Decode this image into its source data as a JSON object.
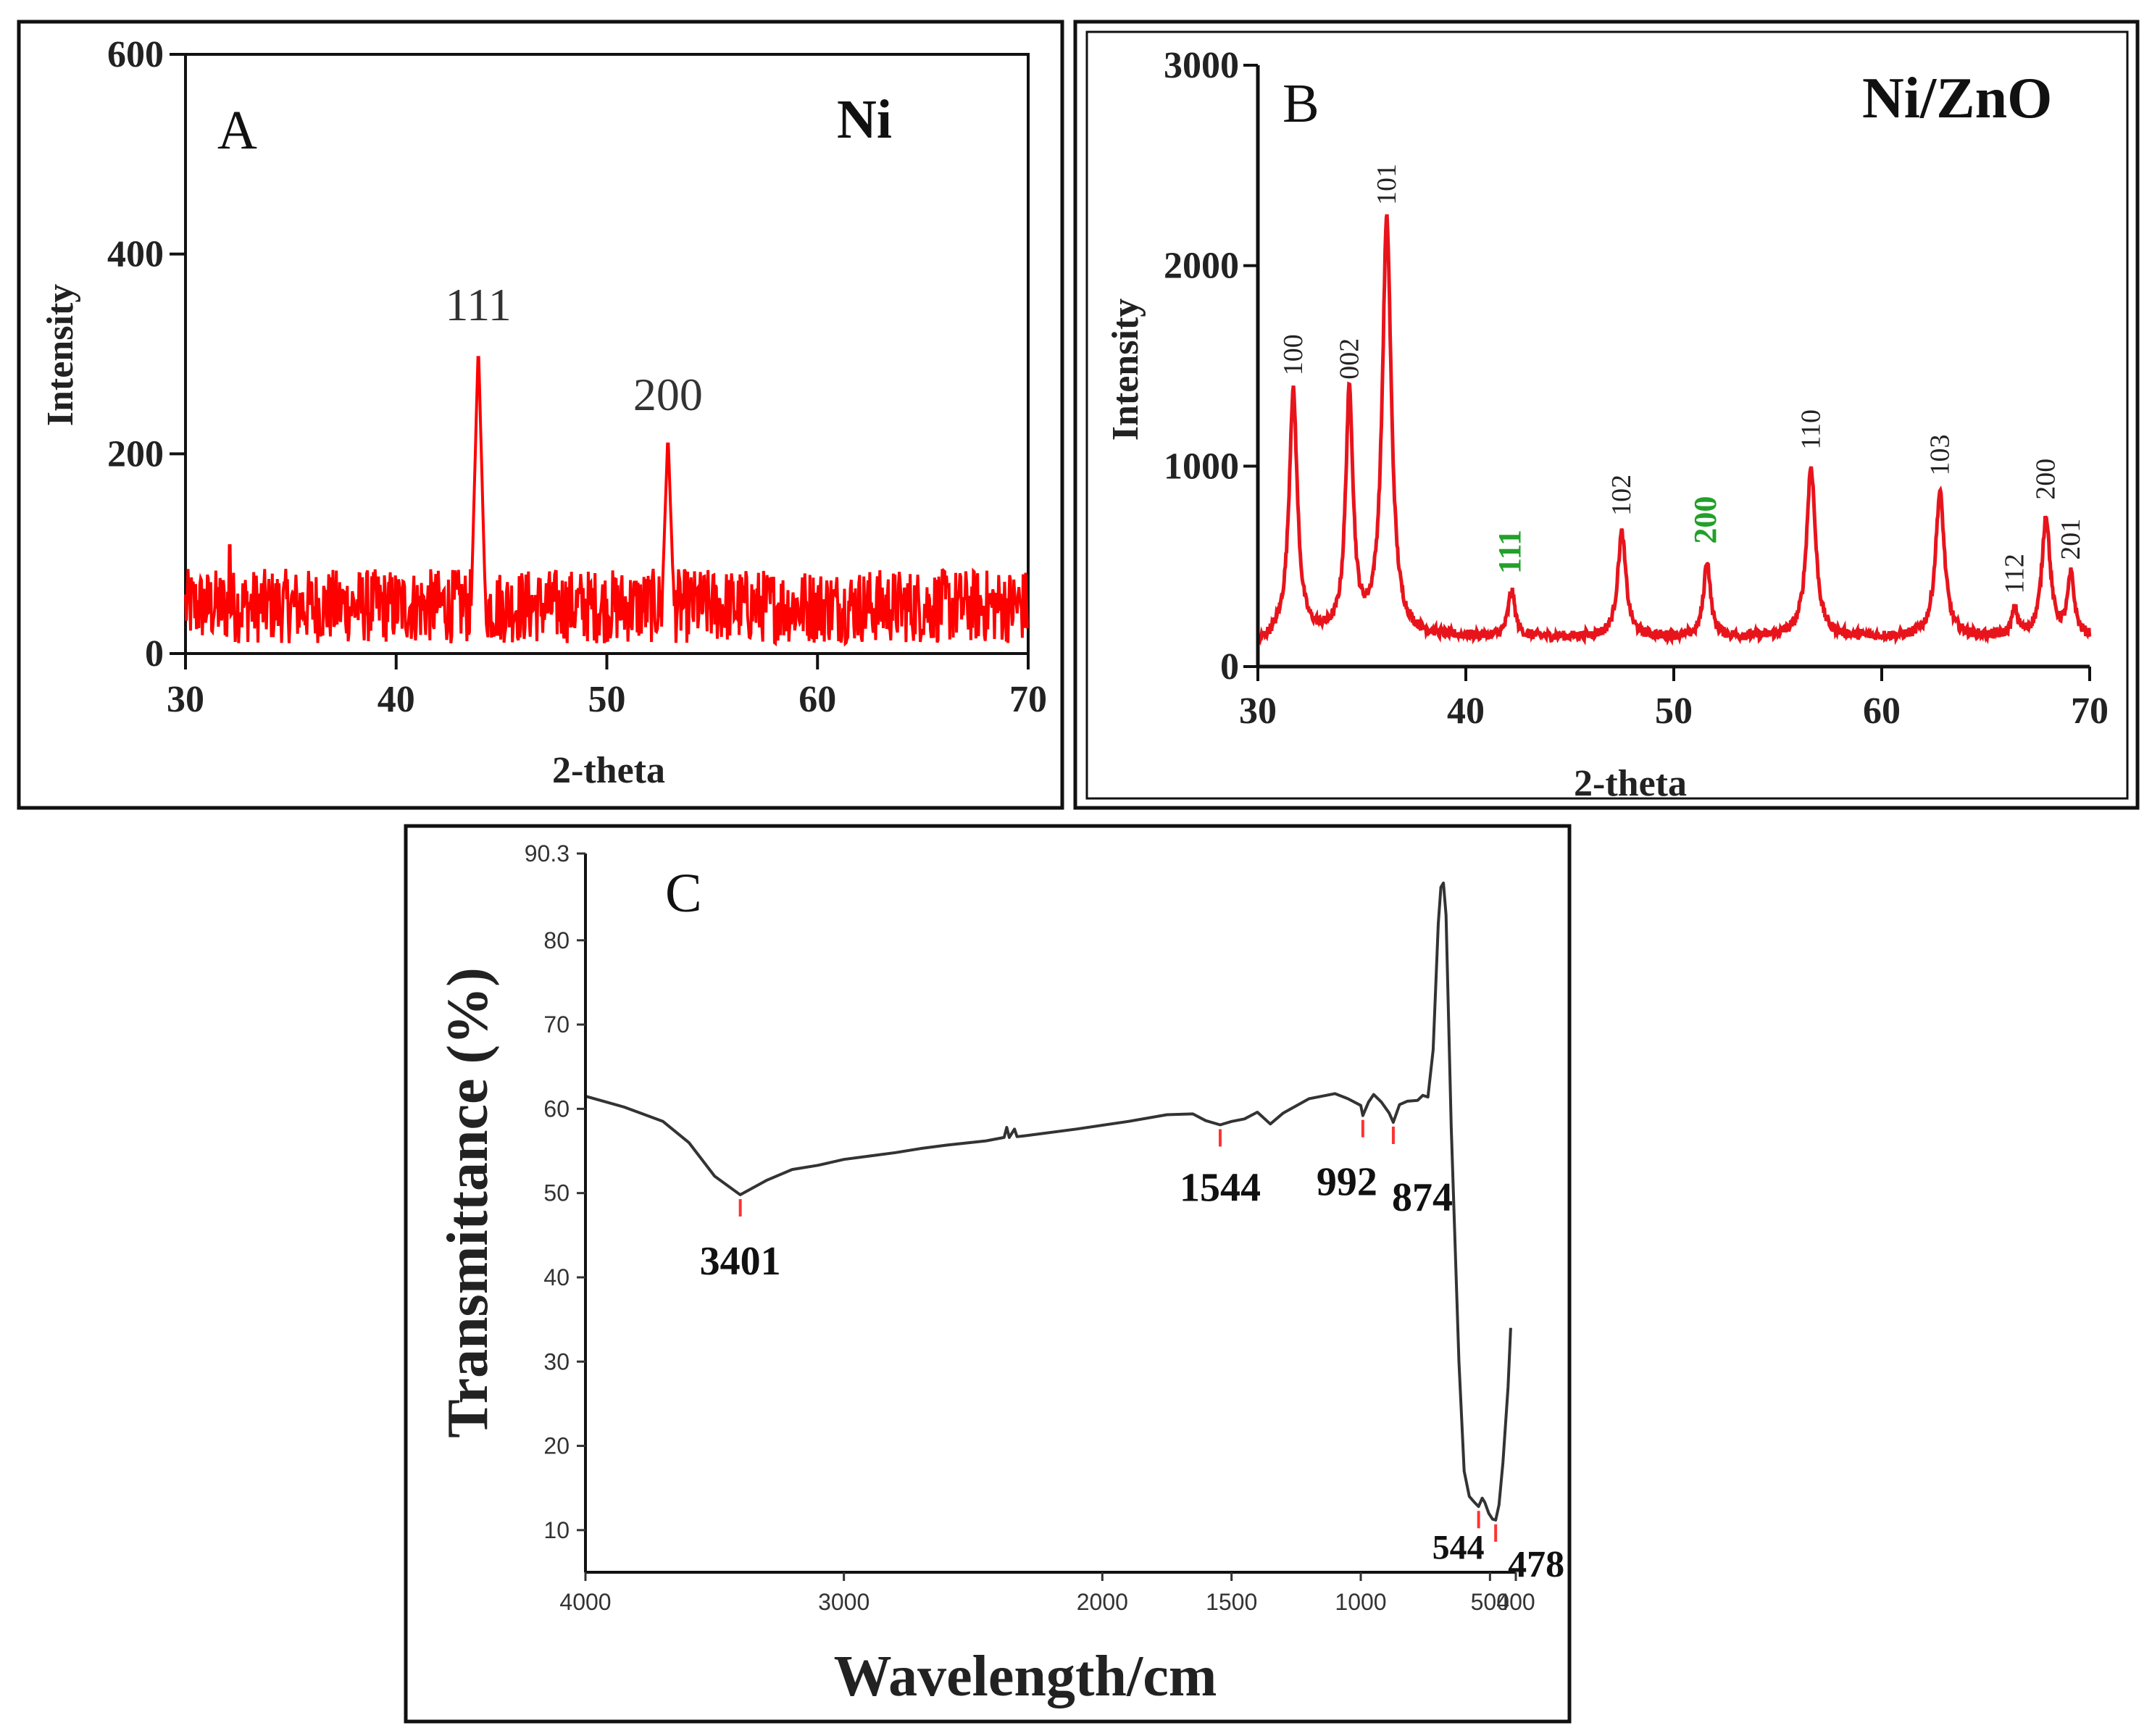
{
  "chart_data": [
    {
      "id": "A",
      "type": "line",
      "panel_label": "A",
      "sample_label": "Ni",
      "xlabel": "2-theta",
      "ylabel": "Intensity",
      "xlim": [
        30,
        70
      ],
      "ylim": [
        0,
        600
      ],
      "x_ticks": [
        30,
        40,
        50,
        60,
        70
      ],
      "y_ticks": [
        0,
        200,
        400,
        600
      ],
      "series_color": "#ff0000",
      "noise_baseline": [
        10,
        85
      ],
      "peaks": [
        {
          "x": 43.9,
          "y": 312,
          "width": 0.35,
          "label": "111",
          "label_color": "#333333"
        },
        {
          "x": 52.9,
          "y": 222,
          "width": 0.3,
          "label": "200",
          "label_color": "#333333"
        }
      ]
    },
    {
      "id": "B",
      "type": "line",
      "panel_label": "B",
      "sample_label": "Ni/ZnO",
      "xlabel": "2-theta",
      "ylabel": "Intensity",
      "xlim": [
        30,
        70
      ],
      "ylim": [
        0,
        3000
      ],
      "x_ticks": [
        30,
        40,
        50,
        60,
        70
      ],
      "y_ticks": [
        0,
        1000,
        2000,
        3000
      ],
      "series_color": "#e8141c",
      "baseline": 160,
      "peaks": [
        {
          "x": 31.7,
          "y": 1380,
          "width": 0.55,
          "label": "100",
          "label_color": "#222222"
        },
        {
          "x": 34.4,
          "y": 1360,
          "width": 0.5,
          "label": "002",
          "label_color": "#222222"
        },
        {
          "x": 36.2,
          "y": 2230,
          "width": 0.6,
          "label": "101",
          "label_color": "#222222"
        },
        {
          "x": 42.2,
          "y": 390,
          "width": 0.45,
          "label": "111",
          "label_color": "#22a02a"
        },
        {
          "x": 47.5,
          "y": 680,
          "width": 0.55,
          "label": "102",
          "label_color": "#222222"
        },
        {
          "x": 51.6,
          "y": 540,
          "width": 0.45,
          "label": "200",
          "label_color": "#22a02a"
        },
        {
          "x": 56.6,
          "y": 1010,
          "width": 0.6,
          "label": "110",
          "label_color": "#222222"
        },
        {
          "x": 62.8,
          "y": 880,
          "width": 0.6,
          "label": "103",
          "label_color": "#222222"
        },
        {
          "x": 66.4,
          "y": 290,
          "width": 0.4,
          "label": "112",
          "label_color": "#222222"
        },
        {
          "x": 67.9,
          "y": 760,
          "width": 0.55,
          "label": "200",
          "label_color": "#222222"
        },
        {
          "x": 69.1,
          "y": 460,
          "width": 0.45,
          "label": "201",
          "label_color": "#222222"
        }
      ]
    },
    {
      "id": "C",
      "type": "line",
      "panel_label": "C",
      "xlabel": "Wavelength/cm",
      "ylabel": "Transmittance  (%)",
      "xlim": [
        4000,
        400
      ],
      "ylim": [
        5,
        90.3
      ],
      "x_ticks": [
        4000,
        3000,
        2000,
        1500,
        1000,
        500,
        400
      ],
      "y_ticks": [
        10,
        20,
        30,
        40,
        50,
        60,
        70,
        80,
        90.3
      ],
      "series_color": "#333333",
      "marker_color": "#ff3333",
      "points": [
        [
          4000,
          61.5
        ],
        [
          3850,
          60.2
        ],
        [
          3700,
          58.5
        ],
        [
          3600,
          56
        ],
        [
          3500,
          52
        ],
        [
          3401,
          49.8
        ],
        [
          3300,
          51.5
        ],
        [
          3200,
          52.8
        ],
        [
          3100,
          53.3
        ],
        [
          3000,
          54
        ],
        [
          2900,
          54.4
        ],
        [
          2800,
          54.8
        ],
        [
          2700,
          55.3
        ],
        [
          2600,
          55.7
        ],
        [
          2450,
          56.2
        ],
        [
          2380,
          56.6
        ],
        [
          2370,
          57.8
        ],
        [
          2360,
          56.6
        ],
        [
          2340,
          57.6
        ],
        [
          2330,
          56.7
        ],
        [
          2300,
          56.8
        ],
        [
          2100,
          57.6
        ],
        [
          1900,
          58.5
        ],
        [
          1750,
          59.3
        ],
        [
          1650,
          59.4
        ],
        [
          1600,
          58.6
        ],
        [
          1544,
          58.1
        ],
        [
          1500,
          58.5
        ],
        [
          1450,
          58.8
        ],
        [
          1400,
          59.6
        ],
        [
          1350,
          58.2
        ],
        [
          1300,
          59.5
        ],
        [
          1200,
          61.2
        ],
        [
          1100,
          61.8
        ],
        [
          1050,
          61.2
        ],
        [
          1000,
          60.4
        ],
        [
          992,
          59.2
        ],
        [
          970,
          60.8
        ],
        [
          950,
          61.7
        ],
        [
          920,
          60.8
        ],
        [
          890,
          59.5
        ],
        [
          874,
          58.4
        ],
        [
          850,
          60.5
        ],
        [
          820,
          60.9
        ],
        [
          780,
          61.0
        ],
        [
          760,
          61.6
        ],
        [
          740,
          61.4
        ],
        [
          720,
          67
        ],
        [
          700,
          82
        ],
        [
          690,
          86.3
        ],
        [
          680,
          86.8
        ],
        [
          670,
          83
        ],
        [
          650,
          58
        ],
        [
          620,
          30
        ],
        [
          600,
          17
        ],
        [
          580,
          14
        ],
        [
          560,
          13.3
        ],
        [
          544,
          12.8
        ],
        [
          530,
          13.8
        ],
        [
          520,
          13.3
        ],
        [
          505,
          12
        ],
        [
          490,
          11.3
        ],
        [
          478,
          11.2
        ],
        [
          465,
          13
        ],
        [
          450,
          18
        ],
        [
          430,
          27
        ],
        [
          420,
          34
        ]
      ],
      "annotations": [
        {
          "x": 3401,
          "y": 49.8,
          "label": "3401"
        },
        {
          "x": 1544,
          "y": 58.1,
          "label": "1544"
        },
        {
          "x": 992,
          "y": 59.2,
          "label": "992"
        },
        {
          "x": 874,
          "y": 58.4,
          "label": "874"
        },
        {
          "x": 544,
          "y": 12.8,
          "label": "544"
        },
        {
          "x": 478,
          "y": 11.2,
          "label": "478"
        }
      ]
    }
  ]
}
